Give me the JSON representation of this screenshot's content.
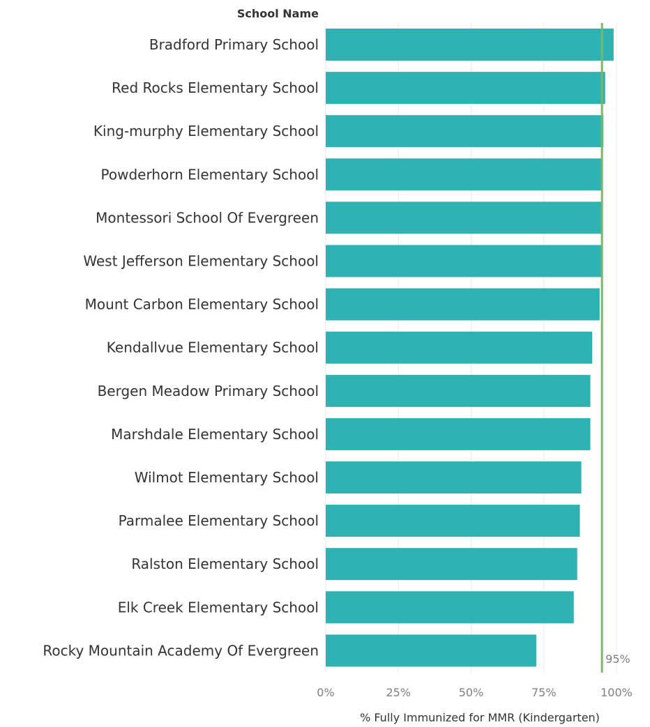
{
  "chart_data": {
    "type": "bar",
    "orientation": "horizontal",
    "row_header": "School Name",
    "xlabel": "% Fully Immunized for MMR (Kindergarten)",
    "ylabel": "",
    "xlim": [
      0,
      100
    ],
    "x_ticks": [
      "0%",
      "25%",
      "50%",
      "75%",
      "100%"
    ],
    "grid": true,
    "categories": [
      "Bradford Primary School",
      "Red Rocks Elementary School",
      "King-murphy Elementary School",
      "Powderhorn Elementary School",
      "Montessori School Of Evergreen",
      "West Jefferson Elementary School",
      "Mount Carbon Elementary School",
      "Kendallvue Elementary School",
      "Bergen Meadow Primary School",
      "Marshdale Elementary School",
      "Wilmot Elementary School",
      "Parmalee Elementary School",
      "Ralston Elementary School",
      "Elk Creek Elementary School",
      "Rocky Mountain Academy Of Evergreen"
    ],
    "values": [
      99,
      96.1,
      95.5,
      95.3,
      95.3,
      95.2,
      94.2,
      91.6,
      91,
      91,
      87.9,
      87.4,
      86.5,
      85.3,
      72.4
    ],
    "bar_color": "#2eb2b2",
    "reference_line": {
      "value": 95,
      "label": "95%",
      "color": "#7ab864"
    }
  }
}
